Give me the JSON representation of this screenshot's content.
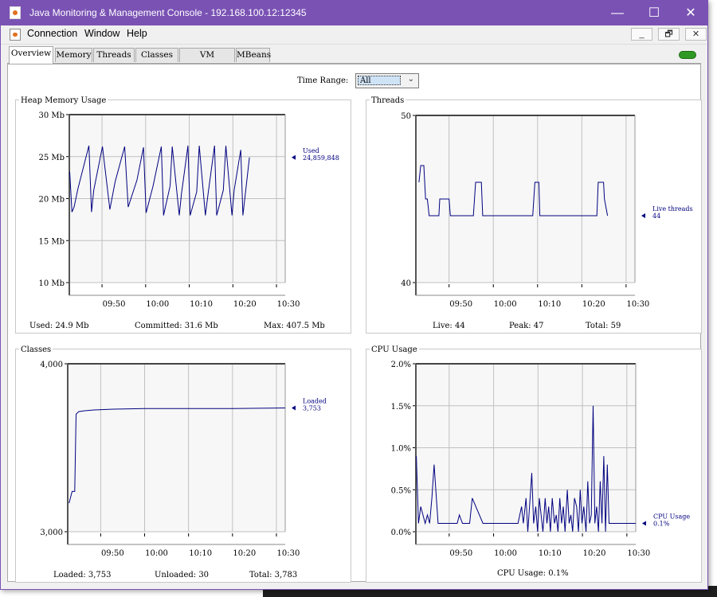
{
  "window": {
    "title": "Java Monitoring & Management Console - 192.168.100.12:12345",
    "controls": {
      "minimize": "—",
      "maximize": "☐",
      "close": "✕"
    }
  },
  "menu": {
    "items": [
      "Connection",
      "Window",
      "Help"
    ],
    "mdi": {
      "minimize": "_",
      "restore": "🗗",
      "close": "✕"
    }
  },
  "tabs": [
    "Overview",
    "Memory",
    "Threads",
    "Classes",
    "VM Summary",
    "MBeans"
  ],
  "active_tab": "Overview",
  "time_range": {
    "label": "Time Range:",
    "value": "All"
  },
  "panels": {
    "heap": {
      "title": "Heap Memory Usage",
      "stats": {
        "used": "Used:  24.9  Mb",
        "committed": "Committed:  31.6  Mb",
        "max": "Max:  407.5  Mb"
      }
    },
    "threads": {
      "title": "Threads",
      "stats": {
        "live": "Live:  44",
        "peak": "Peak:  47",
        "total": "Total:  59"
      }
    },
    "classes": {
      "title": "Classes",
      "stats": {
        "loaded": "Loaded:  3,753",
        "unloaded": "Unloaded:  30",
        "total": "Total:  3,783"
      }
    },
    "cpu": {
      "title": "CPU Usage",
      "stats": {
        "usage": "CPU Usage: 0.1%"
      }
    }
  },
  "chart_data": [
    {
      "id": "heap",
      "type": "line",
      "title": "Heap Memory Usage",
      "x_ticks": [
        "09:50",
        "10:00",
        "10:10",
        "10:20",
        "10:30"
      ],
      "x_range_minutes": [
        -7.5,
        42
      ],
      "y_ticks": [
        "30 Mb",
        "25 Mb",
        "20 Mb",
        "15 Mb",
        "10 Mb"
      ],
      "y_tick_values": [
        30,
        25,
        20,
        15,
        10
      ],
      "ylim": [
        10,
        30
      ],
      "series": [
        {
          "name": "Used",
          "value_label": "24,859,848",
          "x": [
            -7.4,
            -6.9,
            -6.4,
            -5.5,
            -3.0,
            -2.4,
            -1.9,
            0.1,
            1.8,
            3.0,
            5.2,
            6.0,
            8.0,
            9.5,
            10.1,
            11.7,
            13.6,
            14.1,
            15.6,
            16.1,
            17.7,
            18.2,
            19.7,
            20.2,
            21.7,
            22.3,
            23.7,
            24.3,
            25.8,
            26.3,
            27.8,
            28.4,
            29.8,
            30.3,
            31.8,
            32.3,
            33.8
          ],
          "y": [
            23.2,
            18.4,
            19.0,
            21.2,
            26.3,
            18.4,
            21.0,
            26.2,
            18.7,
            22.0,
            26.2,
            19.0,
            22.2,
            26.1,
            18.3,
            21.5,
            26.2,
            18.0,
            21.5,
            26.2,
            18.0,
            20.5,
            26.3,
            18.0,
            20.8,
            26.3,
            18.0,
            20.5,
            26.3,
            18.0,
            21.0,
            26.3,
            18.0,
            21.0,
            25.8,
            18.0,
            24.9
          ]
        }
      ]
    },
    {
      "id": "threads",
      "type": "line",
      "title": "Threads",
      "x_ticks": [
        "09:50",
        "10:00",
        "10:10",
        "10:20",
        "10:30"
      ],
      "x_range_minutes": [
        -7.5,
        42
      ],
      "y_ticks": [
        "50",
        "40"
      ],
      "y_tick_values": [
        50,
        40
      ],
      "ylim": [
        40,
        50
      ],
      "series": [
        {
          "name": "Live threads",
          "value_label": "44",
          "x": [
            -6.8,
            -6.4,
            -5.7,
            -5.3,
            -4.9,
            -4.5,
            -2.3,
            -2.1,
            0.0,
            0.3,
            5.5,
            6.0,
            7.3,
            7.6,
            18.9,
            19.4,
            20.3,
            20.5,
            33.4,
            33.7,
            34.9,
            35.1,
            35.8
          ],
          "y": [
            46,
            47,
            47,
            45,
            45,
            44,
            44,
            45,
            45,
            44,
            44,
            46,
            46,
            44,
            44,
            46,
            46,
            44,
            44,
            46,
            46,
            45,
            44
          ]
        }
      ]
    },
    {
      "id": "classes",
      "type": "line",
      "title": "Classes",
      "x_ticks": [
        "09:50",
        "10:00",
        "10:10",
        "10:20",
        "10:30"
      ],
      "x_range_minutes": [
        -7.5,
        42
      ],
      "y_ticks": [
        "4,000",
        "3,000"
      ],
      "y_tick_values": [
        4000,
        3000
      ],
      "ylim": [
        3000,
        4000
      ],
      "series": [
        {
          "name": "Loaded",
          "value_label": "3,753",
          "x": [
            -7.2,
            -6.5,
            -5.9,
            -5.6,
            -5.0,
            -3.8,
            -1.5,
            3.0,
            10.0,
            30.0,
            42.0
          ],
          "y": [
            3170,
            3240,
            3240,
            3700,
            3715,
            3720,
            3725,
            3730,
            3733,
            3733,
            3737
          ]
        }
      ]
    },
    {
      "id": "cpu",
      "type": "line",
      "title": "CPU Usage",
      "x_ticks": [
        "09:50",
        "10:00",
        "10:10",
        "10:20",
        "10:30"
      ],
      "x_range_minutes": [
        -7.5,
        42
      ],
      "y_ticks": [
        "2.0%",
        "1.5%",
        "1.0%",
        "0.5%",
        "0.0%"
      ],
      "y_tick_values": [
        2.0,
        1.5,
        1.0,
        0.5,
        0.0
      ],
      "ylim": [
        0.0,
        2.0
      ],
      "series": [
        {
          "name": "CPU Usage",
          "value_label": "0.1%",
          "x": [
            -7.4,
            -6.9,
            -6.4,
            -5.9,
            -5.4,
            -4.9,
            -4.4,
            -3.9,
            -3.4,
            -2.5,
            -1.8,
            -1.2,
            -0.6,
            0.0,
            1.8,
            2.3,
            3.0,
            4.6,
            5.2,
            7.6,
            8.2,
            9.0,
            12.0,
            15.5,
            16.3,
            16.7,
            17.3,
            17.7,
            18.1,
            18.6,
            19.0,
            19.5,
            19.9,
            20.3,
            20.7,
            21.1,
            21.6,
            22.0,
            22.4,
            22.8,
            23.2,
            23.7,
            24.1,
            24.5,
            24.9,
            25.3,
            25.7,
            26.1,
            26.6,
            27.0,
            27.4,
            27.8,
            28.2,
            28.7,
            29.1,
            29.5,
            29.9,
            30.3,
            30.8,
            31.2,
            31.6,
            32.0,
            32.4,
            32.8,
            33.2,
            33.6,
            34.0,
            34.4,
            34.8,
            35.2,
            35.6,
            36.0,
            42.0
          ],
          "y": [
            0.9,
            0.1,
            0.3,
            0.2,
            0.1,
            0.2,
            0.1,
            0.4,
            0.8,
            0.1,
            0.1,
            0.1,
            0.1,
            0.1,
            0.1,
            0.2,
            0.1,
            0.1,
            0.4,
            0.1,
            0.1,
            0.1,
            0.1,
            0.1,
            0.3,
            0.1,
            0.4,
            0.0,
            0.3,
            0.7,
            0.1,
            0.3,
            0.0,
            0.4,
            0.2,
            0.0,
            0.4,
            0.1,
            0.3,
            0.0,
            0.4,
            0.1,
            0.2,
            0.0,
            0.4,
            0.1,
            0.3,
            0.0,
            0.5,
            0.1,
            0.2,
            0.0,
            0.4,
            0.3,
            0.0,
            0.5,
            0.1,
            0.3,
            0.0,
            0.6,
            0.1,
            0.2,
            1.5,
            0.1,
            0.3,
            0.0,
            0.6,
            0.1,
            0.9,
            0.0,
            0.8,
            0.1,
            0.1
          ]
        }
      ]
    }
  ],
  "colors": {
    "titlebar": "#7a52b4",
    "series_line": "#000080",
    "plot_bg": "#f7f7f7",
    "grid": "#c0c0c0"
  }
}
